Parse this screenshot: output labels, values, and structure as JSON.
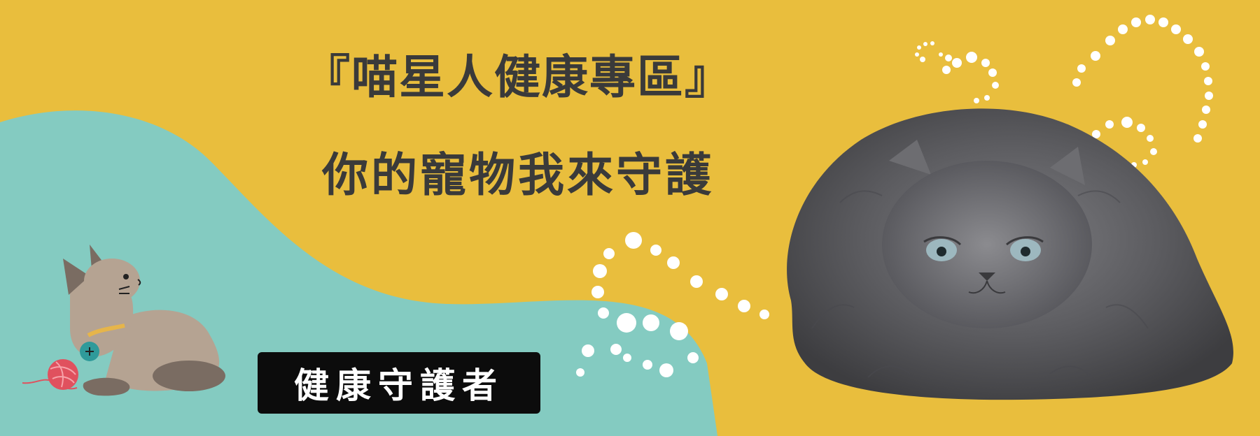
{
  "banner": {
    "title": "『喵星人健康專區』",
    "subtitle": "你的寵物我來守護",
    "cta_label": "健康守護者",
    "colors": {
      "background": "#e9be3d",
      "teal": "#84cbc1",
      "text": "#3a3a3a",
      "button": "#0c0c0c",
      "dots": "#ffffff"
    },
    "icons": {
      "cartoon": "cartoon-cat-with-yarn-illustration",
      "photo": "persian-cat-illustration",
      "decor": "white-dotted-swirl-decoration"
    }
  }
}
